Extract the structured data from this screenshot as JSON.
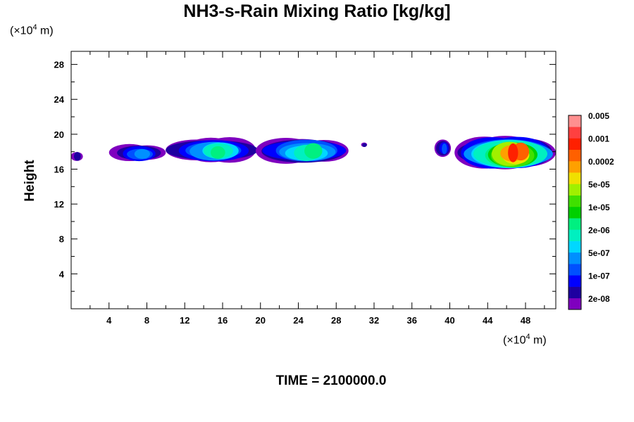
{
  "chart_data": {
    "type": "heatmap",
    "title": "NH3-s-Rain Mixing Ratio [kg/kg]",
    "xlabel": "",
    "ylabel": "Height",
    "x_unit": {
      "prefix": "(×10",
      "exp": "4",
      "suffix": " m)"
    },
    "y_unit": {
      "prefix": "(×10",
      "exp": "4",
      "suffix": " m)"
    },
    "xlim": [
      0,
      51.2
    ],
    "ylim": [
      0,
      29.5
    ],
    "x_ticks": [
      4,
      8,
      12,
      16,
      20,
      24,
      28,
      32,
      36,
      40,
      44,
      48
    ],
    "y_ticks": [
      4,
      8,
      12,
      16,
      20,
      24,
      28
    ],
    "colorbar": {
      "colors": [
        "#7f00bf",
        "#1e00a0",
        "#0000ff",
        "#0050ff",
        "#0090ff",
        "#00d8ff",
        "#00f0c0",
        "#00f080",
        "#00d000",
        "#40e000",
        "#a0f000",
        "#f0e000",
        "#ffa000",
        "#ff6000",
        "#ff2000",
        "#ff4040",
        "#ff9090"
      ],
      "labels": [
        "2e-08",
        "1e-07",
        "5e-07",
        "2e-06",
        "1e-05",
        "5e-05",
        "0.0002",
        "0.001",
        "0.005"
      ]
    },
    "regions": [
      {
        "x": [
          0,
          1.2
        ],
        "y": [
          16.9,
          18.0
        ],
        "max_level": 1
      },
      {
        "x": [
          4.0,
          10.0
        ],
        "y": [
          17.0,
          18.8
        ],
        "max_level": 4
      },
      {
        "x": [
          10.0,
          19.5
        ],
        "y": [
          16.9,
          19.5
        ],
        "max_level": 7
      },
      {
        "x": [
          19.5,
          29.3
        ],
        "y": [
          16.8,
          19.4
        ],
        "max_level": 7
      },
      {
        "x": [
          30.6,
          31.3
        ],
        "y": [
          18.5,
          19.1
        ],
        "max_level": 1
      },
      {
        "x": [
          38.3,
          40.2
        ],
        "y": [
          17.4,
          19.4
        ],
        "max_level": 3
      },
      {
        "x": [
          40.5,
          51.2
        ],
        "y": [
          16.2,
          19.6
        ],
        "max_level": 14
      }
    ]
  },
  "time_label": "TIME = 2100000.0"
}
